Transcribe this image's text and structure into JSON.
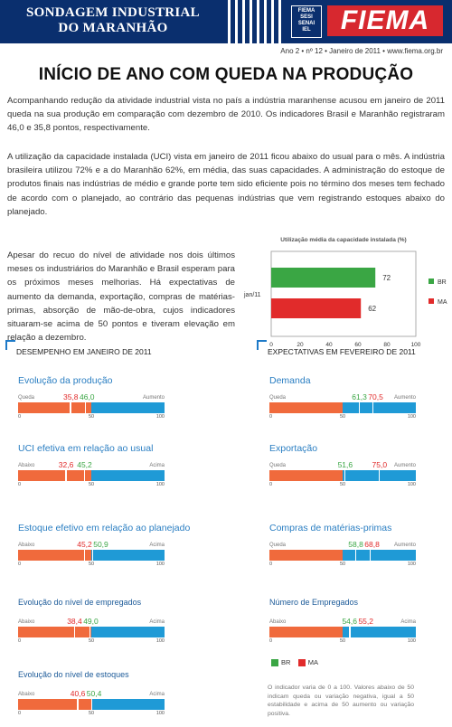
{
  "header": {
    "title_line1": "SONDAGEM INDUSTRIAL",
    "title_line2": "DO MARANHÃO",
    "logo_text": "FIEMA",
    "system_box": [
      "FIEMA",
      "SESI",
      "SENAI",
      "IEL"
    ],
    "edition": "Ano 2 • nº 12 • Janeiro de 2011 • www.fiema.org.br"
  },
  "headline": "INÍCIO DE ANO COM QUEDA NA PRODUÇÃO",
  "paragraphs": [
    "Acompanhando redução da atividade industrial vista no país a indústria maranhense acusou em janeiro de 2011 queda na sua produção em comparação com dezembro de 2010. Os indicadores Brasil e Maranhão registraram 46,0 e 35,8 pontos, respectivamente.",
    "A utilização da capacidade instalada (UCI) vista em janeiro de 2011 ficou abaixo do usual para o mês. A indústria brasileira utilizou 72% e a do Maranhão 62%, em média, das suas capacidades. A administração do estoque de produtos finais nas indústrias de médio e grande porte tem sido eficiente pois no término dos meses tem fechado de acordo com o planejado, ao contrário das pequenas indústrias que vem registrando estoques abaixo do planejado.",
    "Apesar do recuo do nível de atividade nos dois últimos meses os industriários do Maranhão e Brasil esperam para os próximos meses melhorias. Há expectativas de aumento da demanda, exportação, compras de matérias-primas, absorção de mão-de-obra, cujos indicadores situaram-se acima de 50 pontos e tiveram elevação em relação a dezembro."
  ],
  "chart_data": {
    "type": "bar",
    "title": "Utilização média da capacidade instalada (%)",
    "categories": [
      "jan/11"
    ],
    "series": [
      {
        "name": "BR",
        "values": [
          72
        ],
        "color": "#3aa644"
      },
      {
        "name": "MA",
        "values": [
          62
        ],
        "color": "#e12b2b"
      }
    ],
    "xlim": [
      0,
      100
    ],
    "xticks": [
      "0",
      "20",
      "40",
      "60",
      "80",
      "100"
    ],
    "orientation": "horizontal",
    "legend": "right",
    "grid": false
  },
  "sections": {
    "left_title": "DESEMPENHO EM JANEIRO DE 2011",
    "right_title": "EXPECTATIVAS EM FEVEREIRO DE 2011"
  },
  "axis": {
    "min": "0",
    "mid": "50",
    "max": "100"
  },
  "indicators": [
    {
      "title": "Evolução da produção",
      "low": "Queda",
      "high": "Aumento",
      "ma": "35,8",
      "br": "46,0",
      "ma_val": 35.8,
      "br_val": 46.0,
      "style": "large"
    },
    {
      "title": "UCI efetiva em relação ao usual",
      "low": "Abaixo",
      "high": "Acima",
      "ma": "32,6",
      "br": "45,2",
      "ma_val": 32.6,
      "br_val": 45.2,
      "style": "large"
    },
    {
      "title": "Estoque efetivo em relação ao planejado",
      "low": "Abaixo",
      "high": "Acima",
      "ma": "45,2",
      "br": "50,9",
      "ma_val": 45.2,
      "br_val": 50.9,
      "style": "large"
    },
    {
      "title": "Evolução do nível de empregados",
      "low": "Abaixo",
      "high": "Acima",
      "ma": "38,4",
      "br": "49,0",
      "ma_val": 38.4,
      "br_val": 49.0,
      "style": "small"
    },
    {
      "title": "Evolução do nível de estoques",
      "low": "Abaixo",
      "high": "Acima",
      "ma": "40,6",
      "br": "50,4",
      "ma_val": 40.6,
      "br_val": 50.4,
      "style": "small"
    },
    {
      "title": "Demanda",
      "low": "Queda",
      "high": "Aumento",
      "br": "61,3",
      "ma": "70,5",
      "br_val": 61.3,
      "ma_val": 70.5,
      "style": "large"
    },
    {
      "title": "Exportação",
      "low": "Queda",
      "high": "Aumento",
      "br": "51,6",
      "ma": "75,0",
      "br_val": 51.6,
      "ma_val": 75.0,
      "style": "large"
    },
    {
      "title": "Compras de matérias-primas",
      "low": "Queda",
      "high": "Aumento",
      "br": "58,8",
      "ma": "68,8",
      "br_val": 58.8,
      "ma_val": 68.8,
      "style": "large"
    },
    {
      "title": "Número de Empregados",
      "low": "Abaixo",
      "high": "Acima",
      "br": "54,6",
      "ma": "55,2",
      "br_val": 54.6,
      "ma_val": 55.2,
      "style": "small"
    }
  ],
  "legend": {
    "br": "BR",
    "ma": "MA",
    "br_color": "#3aa644",
    "ma_color": "#e12b2b"
  },
  "note": "O indicador varia de 0 a 100. Valores abaixo de 50 indicam queda ou variação negativa, igual a 50 estabilidade e acima de 50 aumento ou variação positiva."
}
